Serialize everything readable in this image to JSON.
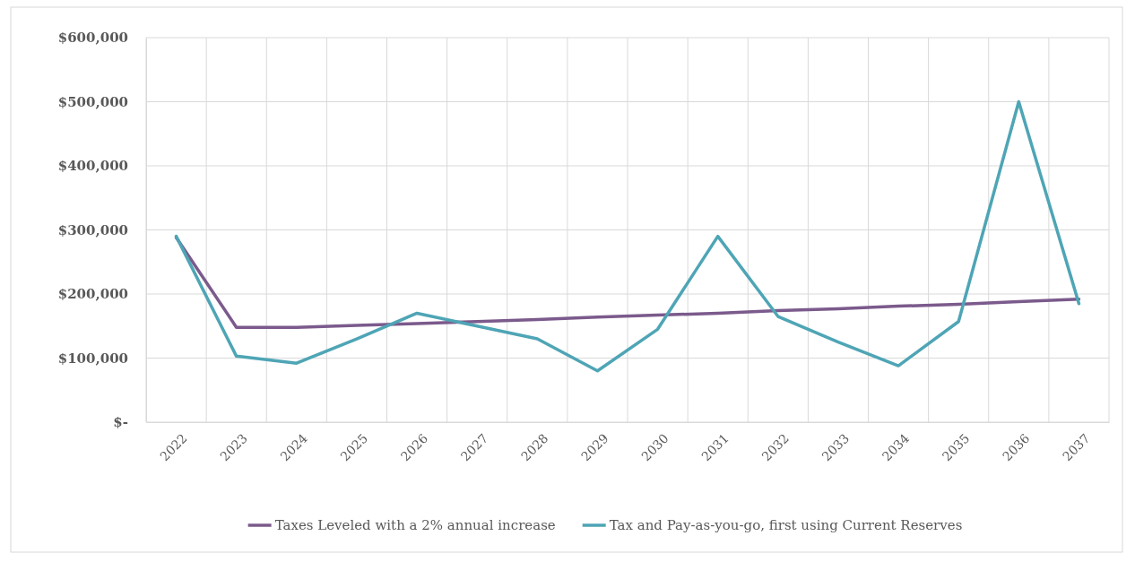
{
  "chart_data": {
    "type": "line",
    "categories": [
      "2022",
      "2023",
      "2024",
      "2025",
      "2026",
      "2027",
      "2028",
      "2029",
      "2030",
      "2031",
      "2032",
      "2033",
      "2034",
      "2035",
      "2036",
      "2037"
    ],
    "series": [
      {
        "name": "Taxes Leveled with a 2% annual increase",
        "color": "#7b5a8c",
        "values": [
          288000,
          148000,
          148000,
          151000,
          154000,
          157000,
          160000,
          164000,
          167000,
          170000,
          174000,
          177000,
          181000,
          184000,
          188000,
          192000
        ]
      },
      {
        "name": "Tax and Pay-as-you-go, first using Current Reserves",
        "color": "#4ea5b5",
        "values": [
          290000,
          103000,
          92000,
          130000,
          170000,
          150000,
          130000,
          80000,
          145000,
          290000,
          165000,
          125000,
          88000,
          157000,
          500000,
          185000
        ]
      }
    ],
    "ylim": [
      0,
      600000
    ],
    "yticks": [
      {
        "value": 0,
        "label": "$-"
      },
      {
        "value": 100000,
        "label": "$100,000"
      },
      {
        "value": 200000,
        "label": "$200,000"
      },
      {
        "value": 300000,
        "label": "$300,000"
      },
      {
        "value": 400000,
        "label": "$400,000"
      },
      {
        "value": 500000,
        "label": "$500,000"
      },
      {
        "value": 600000,
        "label": "$600,000"
      }
    ],
    "grid": true,
    "legend": "bottom",
    "line_style": "solid",
    "marker": "none"
  }
}
